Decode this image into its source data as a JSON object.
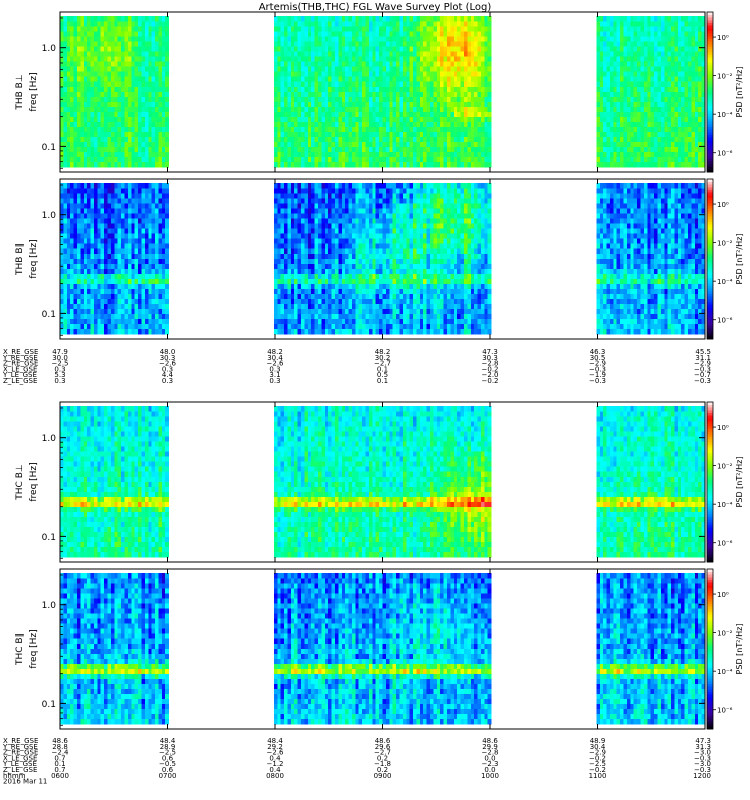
{
  "chart_data": {
    "type": "heatmap",
    "title": "Artemis(THB,THC) FGL Wave Survey Plot (Log)",
    "x_tick_labels": [
      "0600",
      "0700",
      "0800",
      "0900",
      "1000",
      "1100",
      "1200"
    ],
    "x_label_rows": [
      "hhmm",
      "2016 Mar 11"
    ],
    "y_ticks": [
      0.1,
      1.0
    ],
    "y_tick_labels": [
      "0.1",
      "1.0"
    ],
    "y_range": [
      0.055,
      2.3
    ],
    "y_scale": "log",
    "colorbar": {
      "label": "PSD [nT²/Hz]",
      "tick_labels": [
        "10⁰",
        "10⁻²",
        "10⁻⁴",
        "10⁻⁶"
      ],
      "tick_exponents": [
        0,
        -2,
        -4,
        -6
      ],
      "range_exponents": [
        -7,
        1.3
      ],
      "colors": [
        "#000000",
        "#3c00a0",
        "#0000ff",
        "#0090ff",
        "#00ffff",
        "#00ff80",
        "#80ff00",
        "#ffff00",
        "#ff8000",
        "#ff0000",
        "#ffffff"
      ]
    },
    "data_gaps_hours": [
      [
        7.0,
        8.0
      ],
      [
        10.0,
        11.0
      ]
    ],
    "panels": [
      {
        "probe": "THB",
        "component": "B⊥",
        "ylabel": "freq [Hz]",
        "title_label": "THB B⊥",
        "base_level": -2.6,
        "fluct": 1.0,
        "events": [
          {
            "t": 9.7,
            "f": 1.0,
            "amp": 2.2
          },
          {
            "t": 6.4,
            "f": 1.0,
            "amp": 1.2
          }
        ],
        "band": {
          "f": 0.22,
          "amp": 1.1,
          "t_range": [
            9.65,
            10.0
          ]
        }
      },
      {
        "probe": "THB",
        "component": "B∥",
        "ylabel": "freq [Hz]",
        "title_label": "THB B∥",
        "base_level": -4.2,
        "fluct": 1.4,
        "events": [
          {
            "t": 9.7,
            "f": 1.0,
            "amp": 2.2
          },
          {
            "t": 9.1,
            "f": 0.5,
            "amp": 1.2
          }
        ],
        "band": {
          "f": 0.22,
          "amp": 1.4,
          "t_range": [
            6.0,
            12.0
          ]
        }
      },
      {
        "probe": "THC",
        "component": "B⊥",
        "ylabel": "freq [Hz]",
        "title_label": "THC B⊥",
        "base_level": -3.0,
        "fluct": 1.1,
        "events": [
          {
            "t": 9.9,
            "f": 0.22,
            "amp": 1.6
          }
        ],
        "band": {
          "f": 0.22,
          "amp": 2.2,
          "t_range": [
            6.0,
            12.0
          ]
        }
      },
      {
        "probe": "THC",
        "component": "B∥",
        "ylabel": "freq [Hz]",
        "title_label": "THC B∥",
        "base_level": -4.0,
        "fluct": 1.4,
        "events": [
          {
            "t": 9.5,
            "f": 0.6,
            "amp": 0.8
          }
        ],
        "band": {
          "f": 0.22,
          "amp": 2.6,
          "t_range": [
            6.0,
            12.0
          ]
        }
      }
    ],
    "position_tables": [
      {
        "rows": [
          {
            "label": "X_RE_GSE",
            "values": [
              "47.9",
              "48.0",
              "48.2",
              "48.2",
              "47.3",
              "46.3",
              "45.5"
            ]
          },
          {
            "label": "Y_RE_GSE",
            "values": [
              "30.0",
              "30.3",
              "30.4",
              "30.2",
              "30.3",
              "30.5",
              "31.1"
            ]
          },
          {
            "label": "Z_RE_GSE",
            "values": [
              "−2.5",
              "−2.6",
              "−2.6",
              "−2.7",
              "−2.8",
              "−2.9",
              "−2.9"
            ]
          },
          {
            "label": "X_LE_GSE",
            "values": [
              "0.3",
              "0.3",
              "0.3",
              "0.1",
              "−0.2",
              "−0.3",
              "−0.3"
            ]
          },
          {
            "label": "Y_LE_GSE",
            "values": [
              "5.3",
              "4.4",
              "3.1",
              "0.5",
              "−2.0",
              "−1.9",
              "−0.7"
            ]
          },
          {
            "label": "Z_LE_GSE",
            "values": [
              "0.3",
              "0.3",
              "0.3",
              "0.1",
              "−0.2",
              "−0.3",
              "−0.3"
            ]
          }
        ]
      },
      {
        "rows": [
          {
            "label": "X_RE_GSE",
            "values": [
              "48.6",
              "48.4",
              "48.4",
              "48.6",
              "48.6",
              "48.9",
              "47.3"
            ]
          },
          {
            "label": "Y_RE_GSE",
            "values": [
              "28.8",
              "28.9",
              "29.2",
              "29.6",
              "29.9",
              "30.4",
              "31.3"
            ]
          },
          {
            "label": "Z_RE_GSE",
            "values": [
              "−2.4",
              "−2.5",
              "−2.6",
              "−2.7",
              "−2.8",
              "−2.9",
              "−3.0"
            ]
          },
          {
            "label": "X_LE_GSE",
            "values": [
              "0.7",
              "0.6",
              "0.4",
              "0.2",
              "0.0",
              "−0.2",
              "−0.3"
            ]
          },
          {
            "label": "Y_LE_GSE",
            "values": [
              "0.1",
              "−0.5",
              "−1.2",
              "−1.8",
              "−2.3",
              "−2.5",
              "−3.0"
            ]
          },
          {
            "label": "Z_LE_GSE",
            "values": [
              "0.7",
              "0.6",
              "0.4",
              "0.2",
              "0.0",
              "−0.2",
              "−0.3"
            ]
          }
        ]
      }
    ]
  }
}
